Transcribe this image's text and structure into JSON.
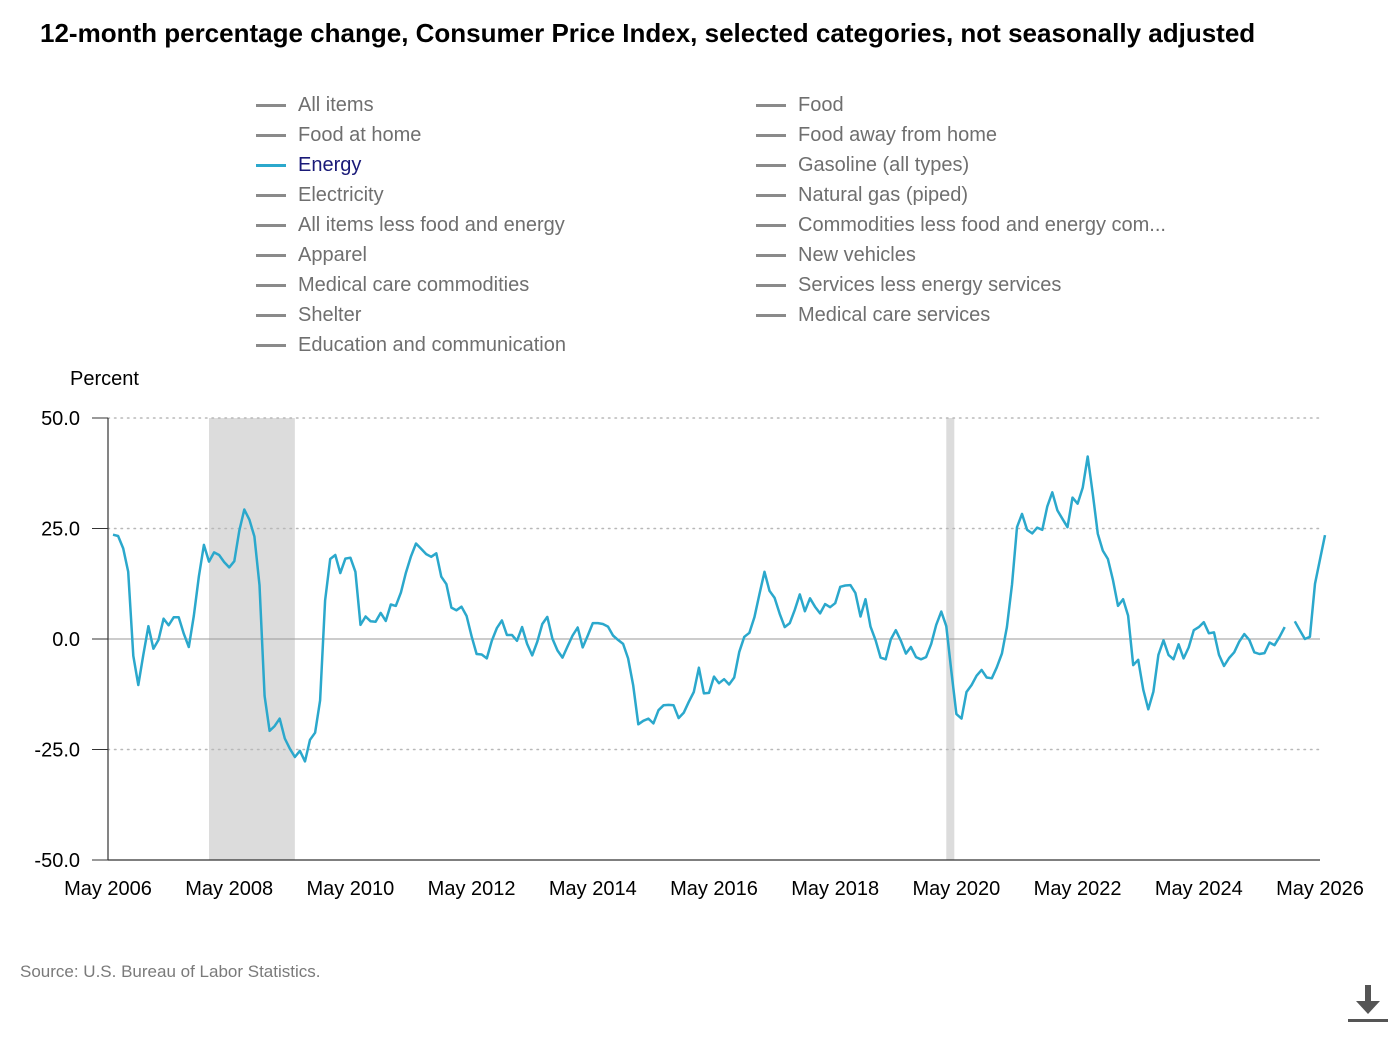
{
  "title": "12-month percentage change, Consumer Price Index, selected categories, not seasonally adjusted",
  "legend": {
    "items": [
      {
        "label": "All items",
        "active": false
      },
      {
        "label": "Food",
        "active": false
      },
      {
        "label": "Food at home",
        "active": false
      },
      {
        "label": "Food away from home",
        "active": false
      },
      {
        "label": "Energy",
        "active": true
      },
      {
        "label": "Gasoline (all types)",
        "active": false
      },
      {
        "label": "Electricity",
        "active": false
      },
      {
        "label": "Natural gas (piped)",
        "active": false
      },
      {
        "label": "All items less food and energy",
        "active": false
      },
      {
        "label": "Commodities less food and energy com...",
        "active": false
      },
      {
        "label": "Apparel",
        "active": false
      },
      {
        "label": "New vehicles",
        "active": false
      },
      {
        "label": "Medical care commodities",
        "active": false
      },
      {
        "label": "Services less energy services",
        "active": false
      },
      {
        "label": "Shelter",
        "active": false
      },
      {
        "label": "Medical care services",
        "active": false
      },
      {
        "label": "Education and communication",
        "active": false
      }
    ]
  },
  "source": "Source: U.S. Bureau of Labor Statistics.",
  "download_icon": "download-icon",
  "colors": {
    "series": "#2ba8cc",
    "inactive_legend": "#8a8a8a",
    "active_legend_text": "#1a1a78",
    "recession": "#dcdcdc"
  },
  "chart_data": {
    "type": "line",
    "ylabel": "Percent",
    "ylim": [
      -50,
      50
    ],
    "yticks": [
      50,
      25,
      0,
      -25,
      -50
    ],
    "ytick_labels": [
      "50.0",
      "25.0",
      "0.0",
      "-25.0",
      "-50.0"
    ],
    "xlim": [
      "2006-05",
      "2026-05"
    ],
    "xticks": [
      "2006-05",
      "2008-05",
      "2010-05",
      "2012-05",
      "2014-05",
      "2016-05",
      "2018-05",
      "2020-05",
      "2022-05",
      "2024-05",
      "2026-05"
    ],
    "xtick_labels": [
      "May 2006",
      "May 2008",
      "May 2010",
      "May 2012",
      "May 2014",
      "May 2016",
      "May 2018",
      "May 2020",
      "May 2022",
      "May 2024",
      "May 2026"
    ],
    "grid": "horizontal dotted",
    "recession_bands": [
      [
        "2008-01",
        "2009-06"
      ],
      [
        "2020-03",
        "2020-04"
      ]
    ],
    "series": [
      {
        "name": "Energy",
        "points": [
          [
            "2006-06",
            23.6
          ],
          [
            "2006-07",
            23.3
          ],
          [
            "2006-08",
            20.5
          ],
          [
            "2006-09",
            15.2
          ],
          [
            "2006-10",
            -3.8
          ],
          [
            "2006-11",
            -10.4
          ],
          [
            "2006-12",
            -3.6
          ],
          [
            "2007-01",
            2.9
          ],
          [
            "2007-02",
            -2.2
          ],
          [
            "2007-03",
            -0.2
          ],
          [
            "2007-04",
            4.6
          ],
          [
            "2007-05",
            3.1
          ],
          [
            "2007-06",
            4.9
          ],
          [
            "2007-07",
            4.9
          ],
          [
            "2007-08",
            1.2
          ],
          [
            "2007-09",
            -1.8
          ],
          [
            "2007-10",
            5.2
          ],
          [
            "2007-11",
            14.2
          ],
          [
            "2007-12",
            21.3
          ],
          [
            "2008-01",
            17.5
          ],
          [
            "2008-02",
            19.6
          ],
          [
            "2008-03",
            19.0
          ],
          [
            "2008-04",
            17.4
          ],
          [
            "2008-05",
            16.2
          ],
          [
            "2008-06",
            17.6
          ],
          [
            "2008-07",
            24.5
          ],
          [
            "2008-08",
            29.3
          ],
          [
            "2008-09",
            27.0
          ],
          [
            "2008-10",
            23.2
          ],
          [
            "2008-11",
            12.2
          ],
          [
            "2008-12",
            -12.9
          ],
          [
            "2009-01",
            -20.8
          ],
          [
            "2009-02",
            -19.7
          ],
          [
            "2009-03",
            -18.0
          ],
          [
            "2009-04",
            -22.5
          ],
          [
            "2009-05",
            -24.8
          ],
          [
            "2009-06",
            -26.7
          ],
          [
            "2009-07",
            -25.3
          ],
          [
            "2009-08",
            -27.7
          ],
          [
            "2009-09",
            -22.8
          ],
          [
            "2009-10",
            -21.2
          ],
          [
            "2009-11",
            -13.9
          ],
          [
            "2009-12",
            8.7
          ],
          [
            "2010-01",
            18.1
          ],
          [
            "2010-02",
            19.0
          ],
          [
            "2010-03",
            14.9
          ],
          [
            "2010-04",
            18.2
          ],
          [
            "2010-05",
            18.4
          ],
          [
            "2010-06",
            15.2
          ],
          [
            "2010-07",
            3.2
          ],
          [
            "2010-08",
            5.1
          ],
          [
            "2010-09",
            4.0
          ],
          [
            "2010-10",
            3.9
          ],
          [
            "2010-11",
            5.9
          ],
          [
            "2010-12",
            4.1
          ],
          [
            "2011-01",
            7.8
          ],
          [
            "2011-02",
            7.5
          ],
          [
            "2011-03",
            10.5
          ],
          [
            "2011-04",
            15.0
          ],
          [
            "2011-05",
            18.7
          ],
          [
            "2011-06",
            21.6
          ],
          [
            "2011-07",
            20.4
          ],
          [
            "2011-08",
            19.2
          ],
          [
            "2011-09",
            18.6
          ],
          [
            "2011-10",
            19.4
          ],
          [
            "2011-11",
            14.1
          ],
          [
            "2011-12",
            12.4
          ],
          [
            "2012-01",
            7.1
          ],
          [
            "2012-02",
            6.5
          ],
          [
            "2012-03",
            7.3
          ],
          [
            "2012-04",
            5.2
          ],
          [
            "2012-05",
            0.6
          ],
          [
            "2012-06",
            -3.4
          ],
          [
            "2012-07",
            -3.5
          ],
          [
            "2012-08",
            -4.4
          ],
          [
            "2012-09",
            -0.4
          ],
          [
            "2012-10",
            2.5
          ],
          [
            "2012-11",
            4.2
          ],
          [
            "2012-12",
            0.9
          ],
          [
            "2013-01",
            0.9
          ],
          [
            "2013-02",
            -0.4
          ],
          [
            "2013-03",
            2.7
          ],
          [
            "2013-04",
            -1.1
          ],
          [
            "2013-05",
            -3.7
          ],
          [
            "2013-06",
            -0.6
          ],
          [
            "2013-07",
            3.4
          ],
          [
            "2013-08",
            5.0
          ],
          [
            "2013-09",
            0.1
          ],
          [
            "2013-10",
            -2.6
          ],
          [
            "2013-11",
            -4.2
          ],
          [
            "2013-12",
            -1.7
          ],
          [
            "2014-01",
            0.8
          ],
          [
            "2014-02",
            2.6
          ],
          [
            "2014-03",
            -1.9
          ],
          [
            "2014-04",
            0.8
          ],
          [
            "2014-05",
            3.6
          ],
          [
            "2014-06",
            3.6
          ],
          [
            "2014-07",
            3.4
          ],
          [
            "2014-08",
            2.8
          ],
          [
            "2014-09",
            0.8
          ],
          [
            "2014-10",
            -0.2
          ],
          [
            "2014-11",
            -1.1
          ],
          [
            "2014-12",
            -4.4
          ],
          [
            "2015-01",
            -10.5
          ],
          [
            "2015-02",
            -19.3
          ],
          [
            "2015-03",
            -18.5
          ],
          [
            "2015-04",
            -18.0
          ],
          [
            "2015-05",
            -19.1
          ],
          [
            "2015-06",
            -16.1
          ],
          [
            "2015-07",
            -15.0
          ],
          [
            "2015-08",
            -14.9
          ],
          [
            "2015-09",
            -15.0
          ],
          [
            "2015-10",
            -17.9
          ],
          [
            "2015-11",
            -16.7
          ],
          [
            "2015-12",
            -14.2
          ],
          [
            "2016-01",
            -12.0
          ],
          [
            "2016-02",
            -6.5
          ],
          [
            "2016-03",
            -12.3
          ],
          [
            "2016-04",
            -12.2
          ],
          [
            "2016-05",
            -8.5
          ],
          [
            "2016-06",
            -10.0
          ],
          [
            "2016-07",
            -9.1
          ],
          [
            "2016-08",
            -10.3
          ],
          [
            "2016-09",
            -8.7
          ],
          [
            "2016-10",
            -2.9
          ],
          [
            "2016-11",
            0.5
          ],
          [
            "2016-12",
            1.4
          ],
          [
            "2017-01",
            4.9
          ],
          [
            "2017-02",
            10.1
          ],
          [
            "2017-03",
            15.2
          ],
          [
            "2017-04",
            10.9
          ],
          [
            "2017-05",
            9.3
          ],
          [
            "2017-06",
            5.7
          ],
          [
            "2017-07",
            2.7
          ],
          [
            "2017-08",
            3.6
          ],
          [
            "2017-09",
            6.6
          ],
          [
            "2017-10",
            10.1
          ],
          [
            "2017-11",
            6.3
          ],
          [
            "2017-12",
            9.2
          ],
          [
            "2018-01",
            7.3
          ],
          [
            "2018-02",
            5.8
          ],
          [
            "2018-03",
            7.9
          ],
          [
            "2018-04",
            7.2
          ],
          [
            "2018-05",
            8.1
          ],
          [
            "2018-06",
            11.8
          ],
          [
            "2018-07",
            12.1
          ],
          [
            "2018-08",
            12.2
          ],
          [
            "2018-09",
            10.4
          ],
          [
            "2018-10",
            5.1
          ],
          [
            "2018-11",
            9.0
          ],
          [
            "2018-12",
            2.8
          ],
          [
            "2019-01",
            -0.3
          ],
          [
            "2019-02",
            -4.2
          ],
          [
            "2019-03",
            -4.6
          ],
          [
            "2019-04",
            -0.1
          ],
          [
            "2019-05",
            2.0
          ],
          [
            "2019-06",
            -0.4
          ],
          [
            "2019-07",
            -3.3
          ],
          [
            "2019-08",
            -1.8
          ],
          [
            "2019-09",
            -4.1
          ],
          [
            "2019-10",
            -4.6
          ],
          [
            "2019-11",
            -4.1
          ],
          [
            "2019-12",
            -1.1
          ],
          [
            "2020-01",
            3.2
          ],
          [
            "2020-02",
            6.2
          ],
          [
            "2020-03",
            2.9
          ],
          [
            "2020-04",
            -7.2
          ],
          [
            "2020-05",
            -17.0
          ],
          [
            "2020-06",
            -18.0
          ],
          [
            "2020-07",
            -12.0
          ],
          [
            "2020-08",
            -10.4
          ],
          [
            "2020-09",
            -8.3
          ],
          [
            "2020-10",
            -7.0
          ],
          [
            "2020-11",
            -8.7
          ],
          [
            "2020-12",
            -8.9
          ],
          [
            "2021-01",
            -6.4
          ],
          [
            "2021-02",
            -3.3
          ],
          [
            "2021-03",
            2.7
          ],
          [
            "2021-04",
            12.3
          ],
          [
            "2021-05",
            25.3
          ],
          [
            "2021-06",
            28.3
          ],
          [
            "2021-07",
            24.7
          ],
          [
            "2021-08",
            23.9
          ],
          [
            "2021-09",
            25.2
          ],
          [
            "2021-10",
            24.7
          ],
          [
            "2021-11",
            30.0
          ],
          [
            "2021-12",
            33.2
          ],
          [
            "2022-01",
            29.1
          ],
          [
            "2022-02",
            27.2
          ],
          [
            "2022-03",
            25.3
          ],
          [
            "2022-04",
            32.0
          ],
          [
            "2022-05",
            30.6
          ],
          [
            "2022-06",
            34.2
          ],
          [
            "2022-07",
            41.3
          ],
          [
            "2022-08",
            32.8
          ],
          [
            "2022-09",
            23.8
          ],
          [
            "2022-10",
            20.0
          ],
          [
            "2022-11",
            18.1
          ],
          [
            "2022-12",
            13.3
          ],
          [
            "2023-01",
            7.5
          ],
          [
            "2023-02",
            9.0
          ],
          [
            "2023-03",
            5.3
          ],
          [
            "2023-04",
            -5.9
          ],
          [
            "2023-05",
            -4.7
          ],
          [
            "2023-06",
            -11.5
          ],
          [
            "2023-07",
            -15.9
          ],
          [
            "2023-08",
            -11.9
          ],
          [
            "2023-09",
            -3.6
          ],
          [
            "2023-10",
            -0.3
          ],
          [
            "2023-11",
            -3.6
          ],
          [
            "2023-12",
            -4.6
          ],
          [
            "2024-01",
            -1.2
          ],
          [
            "2024-02",
            -4.4
          ],
          [
            "2024-03",
            -1.9
          ],
          [
            "2024-04",
            2.0
          ],
          [
            "2024-05",
            2.7
          ],
          [
            "2024-06",
            3.8
          ],
          [
            "2024-07",
            1.3
          ],
          [
            "2024-08",
            1.5
          ],
          [
            "2024-09",
            -3.6
          ],
          [
            "2024-10",
            -6.1
          ],
          [
            "2024-11",
            -4.3
          ],
          [
            "2024-12",
            -3.0
          ],
          [
            "2025-01",
            -0.6
          ],
          [
            "2025-02",
            1.1
          ],
          [
            "2025-03",
            -0.2
          ],
          [
            "2025-04",
            -3.0
          ],
          [
            "2025-05",
            -3.4
          ],
          [
            "2025-06",
            -3.2
          ],
          [
            "2025-07",
            -0.8
          ],
          [
            "2025-08",
            -1.4
          ],
          [
            "2025-09",
            0.5
          ],
          [
            "2025-10",
            2.7
          ],
          [
            "2025-11",
            null
          ],
          [
            "2025-12",
            4.0
          ],
          [
            "2026-01",
            2.0
          ],
          [
            "2026-02",
            0.0
          ],
          [
            "2026-03",
            0.5
          ],
          [
            "2026-04",
            12.5
          ],
          [
            "2026-05",
            18.0
          ],
          [
            "2026-06",
            23.5
          ]
        ]
      }
    ]
  }
}
